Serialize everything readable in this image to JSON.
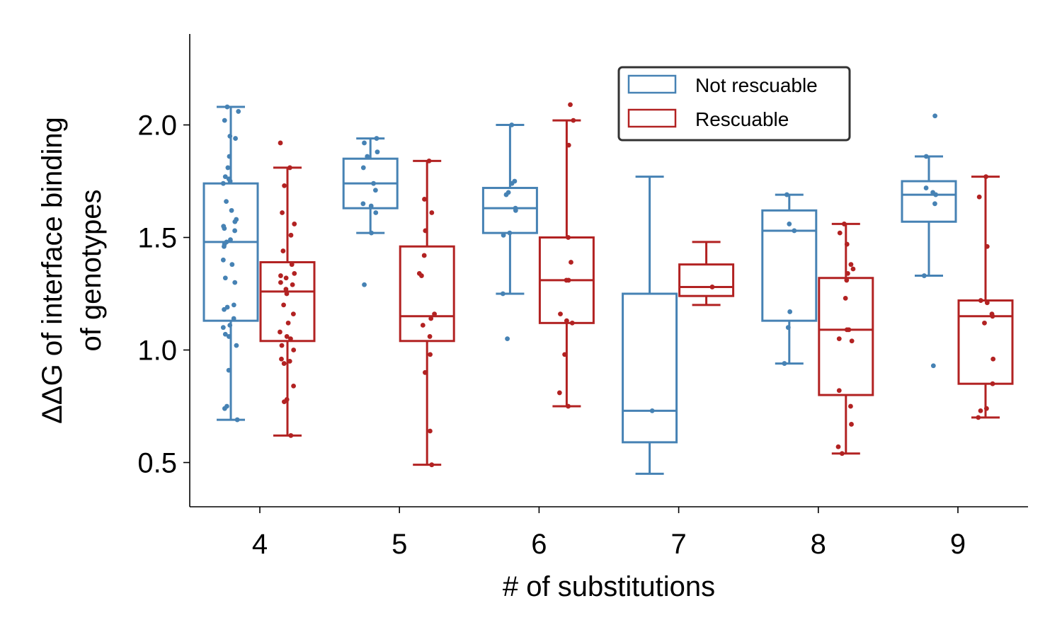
{
  "chart_data": {
    "type": "box",
    "xlabel": "# of substitutions",
    "ylabel": [
      "ΔΔG of interface binding",
      "of genotypes"
    ],
    "categories": [
      "4",
      "5",
      "6",
      "7",
      "8",
      "9"
    ],
    "ylim": [
      0.3,
      2.4
    ],
    "yticks": [
      0.5,
      1.0,
      1.5,
      2.0
    ],
    "ytick_labels": [
      "0.5",
      "1.0",
      "1.5",
      "2.0"
    ],
    "grid": false,
    "legend": {
      "placement": "top-right"
    },
    "series": [
      {
        "name": "Not rescuable",
        "color": "#4682b4",
        "boxes": [
          {
            "category": "4",
            "whisker_low": 0.69,
            "q1": 1.13,
            "median": 1.48,
            "q3": 1.74,
            "whisker_high": 2.08,
            "points": [
              2.08,
              2.06,
              2.02,
              1.95,
              1.94,
              1.86,
              1.81,
              1.77,
              1.76,
              1.75,
              1.74,
              1.66,
              1.62,
              1.58,
              1.57,
              1.55,
              1.54,
              1.53,
              1.49,
              1.48,
              1.47,
              1.46,
              1.4,
              1.38,
              1.32,
              1.3,
              1.2,
              1.19,
              1.18,
              1.14,
              1.11,
              1.1,
              1.07,
              1.06,
              1.02,
              0.91,
              0.75,
              0.74,
              0.69
            ]
          },
          {
            "category": "5",
            "whisker_low": 1.52,
            "q1": 1.63,
            "median": 1.74,
            "q3": 1.85,
            "whisker_high": 1.94,
            "points": [
              1.94,
              1.92,
              1.88,
              1.86,
              1.81,
              1.74,
              1.71,
              1.65,
              1.64,
              1.61,
              1.52,
              1.29
            ]
          },
          {
            "category": "6",
            "whisker_low": 1.25,
            "q1": 1.52,
            "median": 1.63,
            "q3": 1.72,
            "whisker_high": 2.0,
            "points": [
              2.0,
              1.75,
              1.74,
              1.7,
              1.69,
              1.63,
              1.62,
              1.52,
              1.51,
              1.25,
              1.05
            ]
          },
          {
            "category": "7",
            "whisker_low": 0.45,
            "q1": 0.59,
            "median": 0.73,
            "q3": 1.25,
            "whisker_high": 1.77,
            "points": [
              0.73
            ]
          },
          {
            "category": "8",
            "whisker_low": 0.94,
            "q1": 1.13,
            "median": 1.53,
            "q3": 1.62,
            "whisker_high": 1.69,
            "points": [
              1.69,
              1.56,
              1.53,
              1.17,
              1.1,
              0.94
            ]
          },
          {
            "category": "9",
            "whisker_low": 1.33,
            "q1": 1.57,
            "median": 1.69,
            "q3": 1.75,
            "whisker_high": 1.86,
            "points": [
              2.04,
              1.86,
              1.72,
              1.7,
              1.69,
              1.65,
              1.33,
              0.93
            ]
          }
        ]
      },
      {
        "name": "Rescuable",
        "color": "#b22222",
        "boxes": [
          {
            "category": "4",
            "whisker_low": 0.62,
            "q1": 1.04,
            "median": 1.26,
            "q3": 1.39,
            "whisker_high": 1.81,
            "points": [
              1.92,
              1.81,
              1.73,
              1.61,
              1.56,
              1.51,
              1.44,
              1.38,
              1.34,
              1.33,
              1.32,
              1.3,
              1.29,
              1.27,
              1.25,
              1.2,
              1.16,
              1.12,
              1.08,
              1.06,
              1.05,
              1.02,
              1.0,
              0.96,
              0.95,
              0.94,
              0.84,
              0.78,
              0.77,
              0.62
            ]
          },
          {
            "category": "5",
            "whisker_low": 0.49,
            "q1": 1.04,
            "median": 1.15,
            "q3": 1.46,
            "whisker_high": 1.84,
            "points": [
              1.84,
              1.67,
              1.61,
              1.53,
              1.42,
              1.34,
              1.33,
              1.16,
              1.14,
              1.11,
              1.06,
              0.98,
              0.9,
              0.64,
              0.49
            ]
          },
          {
            "category": "6",
            "whisker_low": 0.75,
            "q1": 1.12,
            "median": 1.31,
            "q3": 1.5,
            "whisker_high": 2.02,
            "points": [
              2.09,
              2.02,
              1.91,
              1.5,
              1.39,
              1.31,
              1.31,
              1.16,
              1.13,
              1.12,
              0.98,
              0.81,
              0.75
            ]
          },
          {
            "category": "7",
            "whisker_low": 1.2,
            "q1": 1.24,
            "median": 1.28,
            "q3": 1.38,
            "whisker_high": 1.48,
            "points": [
              1.28
            ]
          },
          {
            "category": "8",
            "whisker_low": 0.54,
            "q1": 0.8,
            "median": 1.09,
            "q3": 1.32,
            "whisker_high": 1.56,
            "points": [
              1.56,
              1.52,
              1.47,
              1.38,
              1.36,
              1.34,
              1.31,
              1.23,
              1.09,
              1.09,
              1.05,
              1.04,
              0.82,
              0.75,
              0.67,
              0.57,
              0.54
            ]
          },
          {
            "category": "9",
            "whisker_low": 0.7,
            "q1": 0.85,
            "median": 1.15,
            "q3": 1.22,
            "whisker_high": 1.77,
            "points": [
              1.77,
              1.68,
              1.46,
              1.22,
              1.21,
              1.16,
              1.15,
              1.12,
              0.96,
              0.85,
              0.74,
              0.73,
              0.7
            ]
          }
        ]
      }
    ]
  }
}
